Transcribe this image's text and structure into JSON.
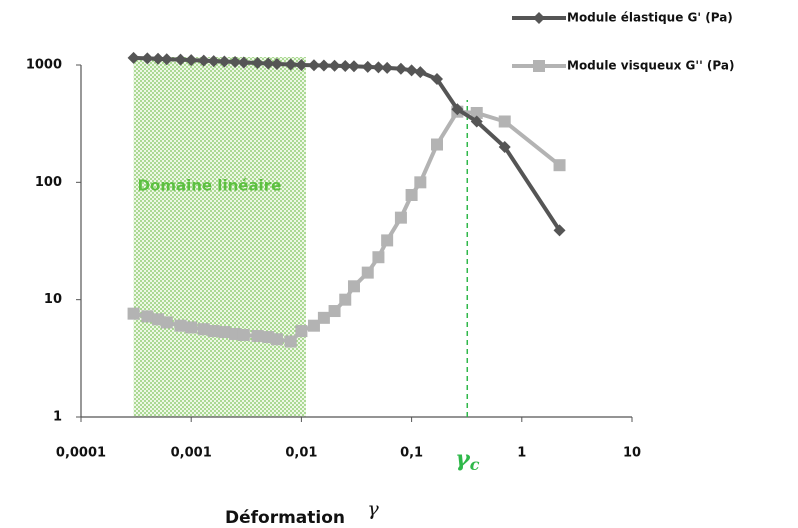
{
  "chart_data": {
    "type": "line",
    "x_label": "Déformation",
    "x_label_symbol": "γ",
    "log_x": true,
    "log_y": true,
    "grid": false,
    "legend": "top-right",
    "xlim": [
      0.0001,
      10
    ],
    "ylim": [
      1,
      1000
    ],
    "xticks": [
      {
        "value": 0.0001,
        "label": "0,0001"
      },
      {
        "value": 0.001,
        "label": "0,001"
      },
      {
        "value": 0.01,
        "label": "0,01"
      },
      {
        "value": 0.1,
        "label": "0,1"
      },
      1,
      10
    ],
    "yticks": [
      1,
      10,
      100,
      1000
    ],
    "linear_domain": {
      "label": "Domaine linéaire",
      "x": [
        0.0003,
        0.011
      ]
    },
    "critical_strain": {
      "symbol": "γ",
      "sub": "c",
      "x": 0.32
    },
    "x": [
      0.0003,
      0.0004,
      0.0005,
      0.0006,
      0.0008,
      0.001,
      0.0013,
      0.0016,
      0.002,
      0.0025,
      0.003,
      0.004,
      0.005,
      0.006,
      0.008,
      0.01,
      0.013,
      0.016,
      0.02,
      0.025,
      0.03,
      0.04,
      0.05,
      0.06,
      0.08,
      0.1,
      0.12,
      0.17,
      0.26,
      0.39,
      0.7,
      2.2
    ],
    "series": [
      {
        "name": "Module élastique G' (Pa)",
        "color": "#555555",
        "marker": "diamond",
        "values": [
          1150,
          1140,
          1130,
          1120,
          1110,
          1100,
          1090,
          1080,
          1070,
          1060,
          1050,
          1040,
          1030,
          1020,
          1010,
          1000,
          995,
          990,
          985,
          980,
          975,
          965,
          955,
          945,
          930,
          900,
          870,
          760,
          420,
          330,
          200,
          39
        ]
      },
      {
        "name": "Module visqueux G'' (Pa)",
        "color": "#b3b3b3",
        "marker": "square",
        "values": [
          7.6,
          7.2,
          6.8,
          6.4,
          6,
          5.8,
          5.6,
          5.4,
          5.3,
          5.1,
          5,
          4.9,
          4.8,
          4.6,
          4.4,
          5.4,
          6,
          7,
          8,
          10,
          13,
          17,
          23,
          32,
          50,
          78,
          100,
          210,
          400,
          390,
          330,
          140
        ]
      }
    ]
  }
}
